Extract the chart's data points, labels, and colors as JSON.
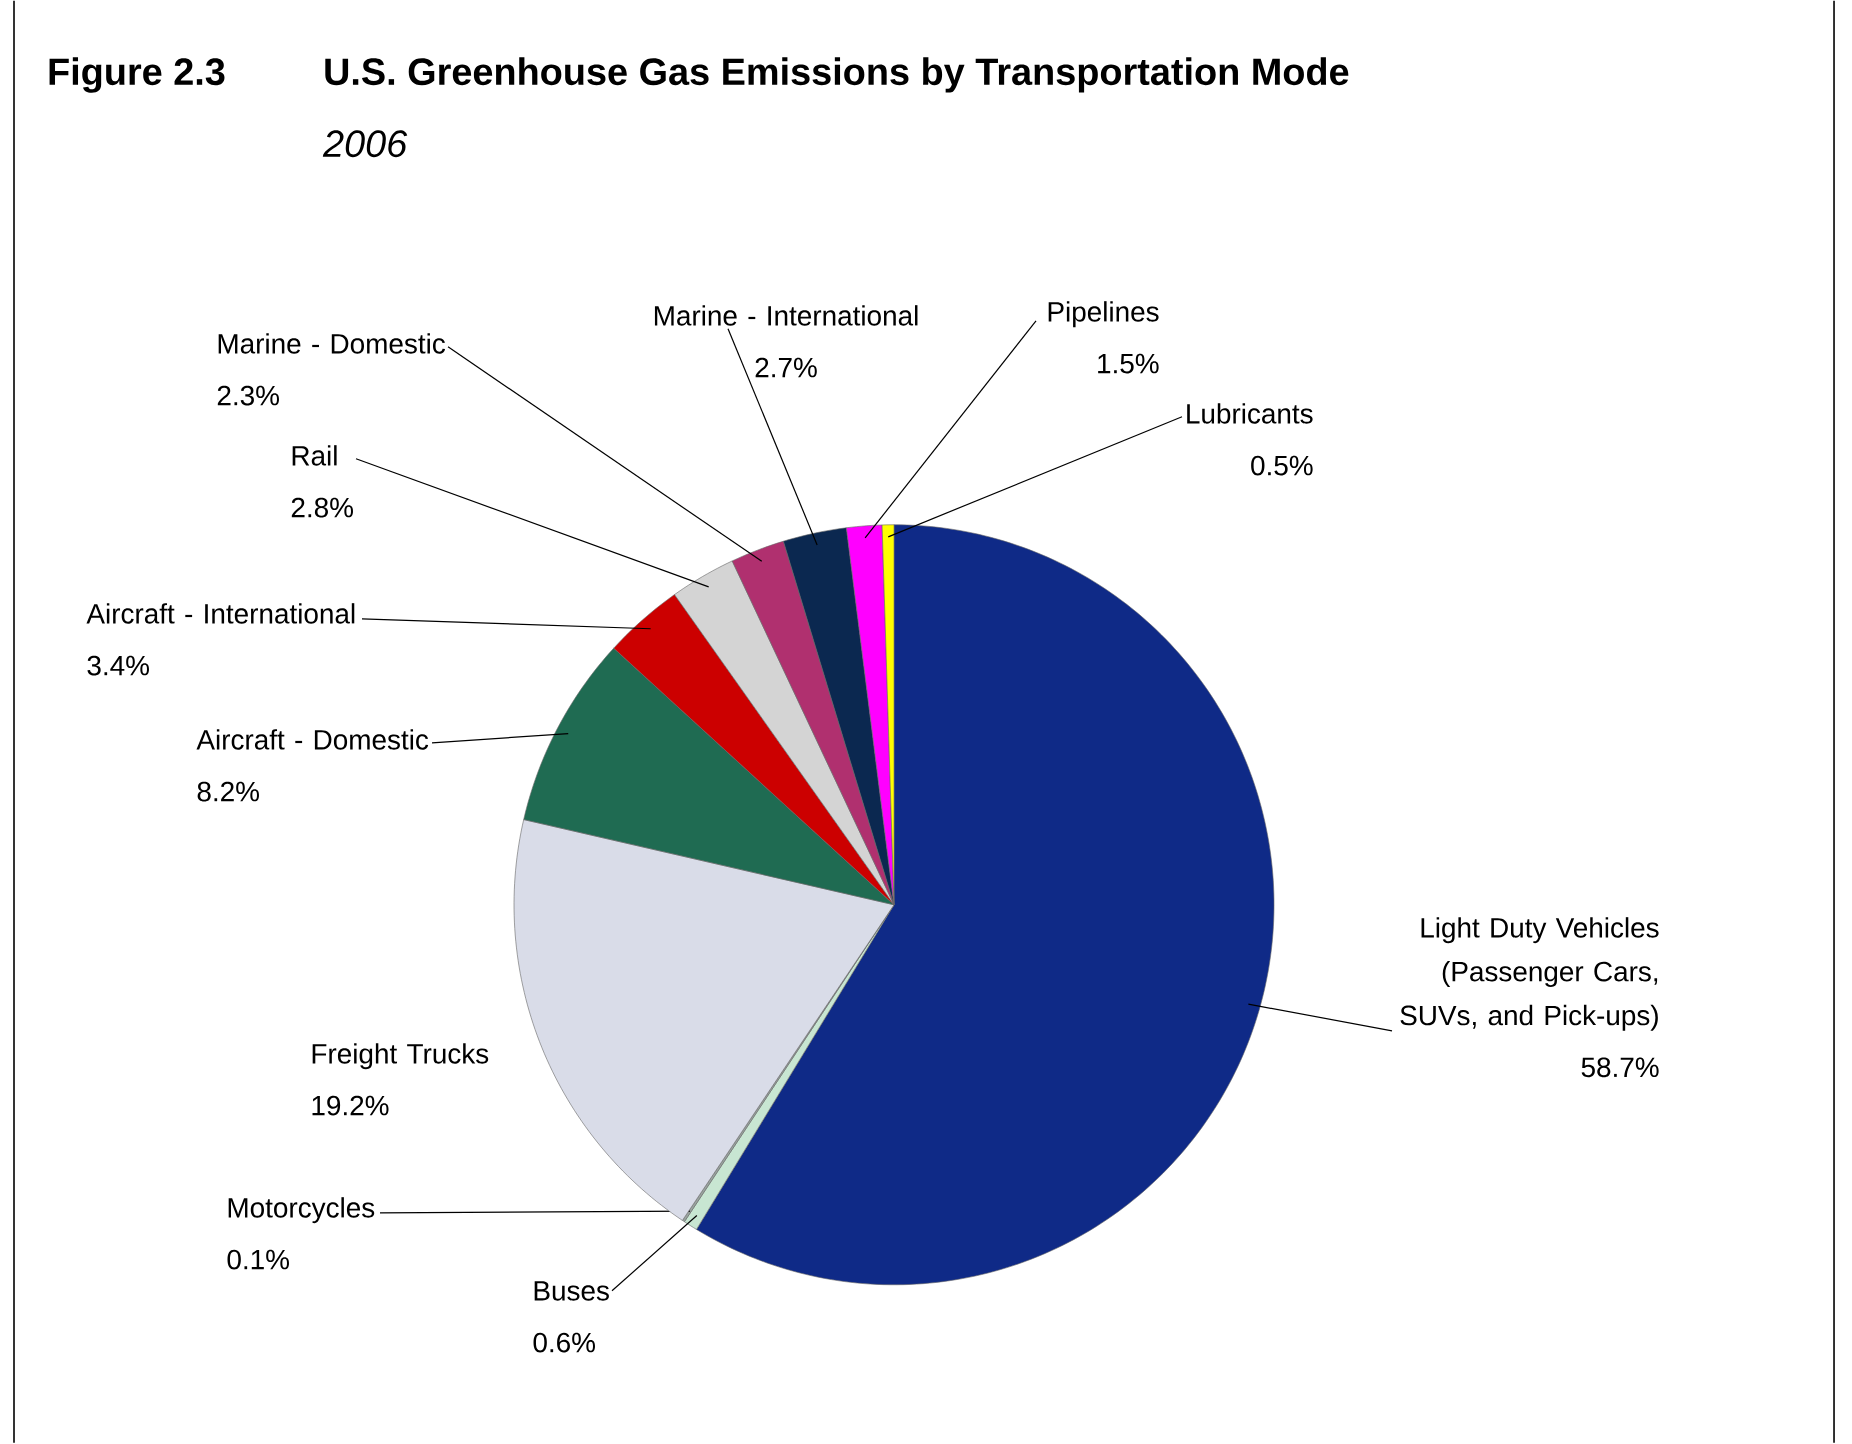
{
  "chart_data": {
    "type": "pie",
    "title": "U.S. Greenhouse Gas Emissions by Transportation Mode",
    "subtitle": "2006",
    "annotations": [
      "Figure 2.3"
    ],
    "categories": [
      "Light Duty Vehicles (Passenger Cars, SUVs, and Pick-ups)",
      "Buses",
      "Motorcycles",
      "Freight Trucks",
      "Aircraft - Domestic",
      "Aircraft - International",
      "Rail",
      "Marine - Domestic",
      "Marine - International",
      "Pipelines",
      "Lubricants"
    ],
    "values": [
      58.7,
      0.6,
      0.1,
      19.2,
      8.2,
      3.4,
      2.8,
      2.3,
      2.7,
      1.5,
      0.5
    ],
    "value_labels": [
      "58.7%",
      "0.6%",
      "0.1%",
      "19.2%",
      "8.2%",
      "3.4%",
      "2.8%",
      "2.3%",
      "2.7%",
      "1.5%",
      "0.5%"
    ],
    "colors": [
      "#0f2a87",
      "#c8e6d2",
      "#9aa5a0",
      "#d9dce8",
      "#1f6b52",
      "#cc0000",
      "#d4d4d4",
      "#b0306f",
      "#0b2850",
      "#ff00ff",
      "#ffff00"
    ]
  }
}
